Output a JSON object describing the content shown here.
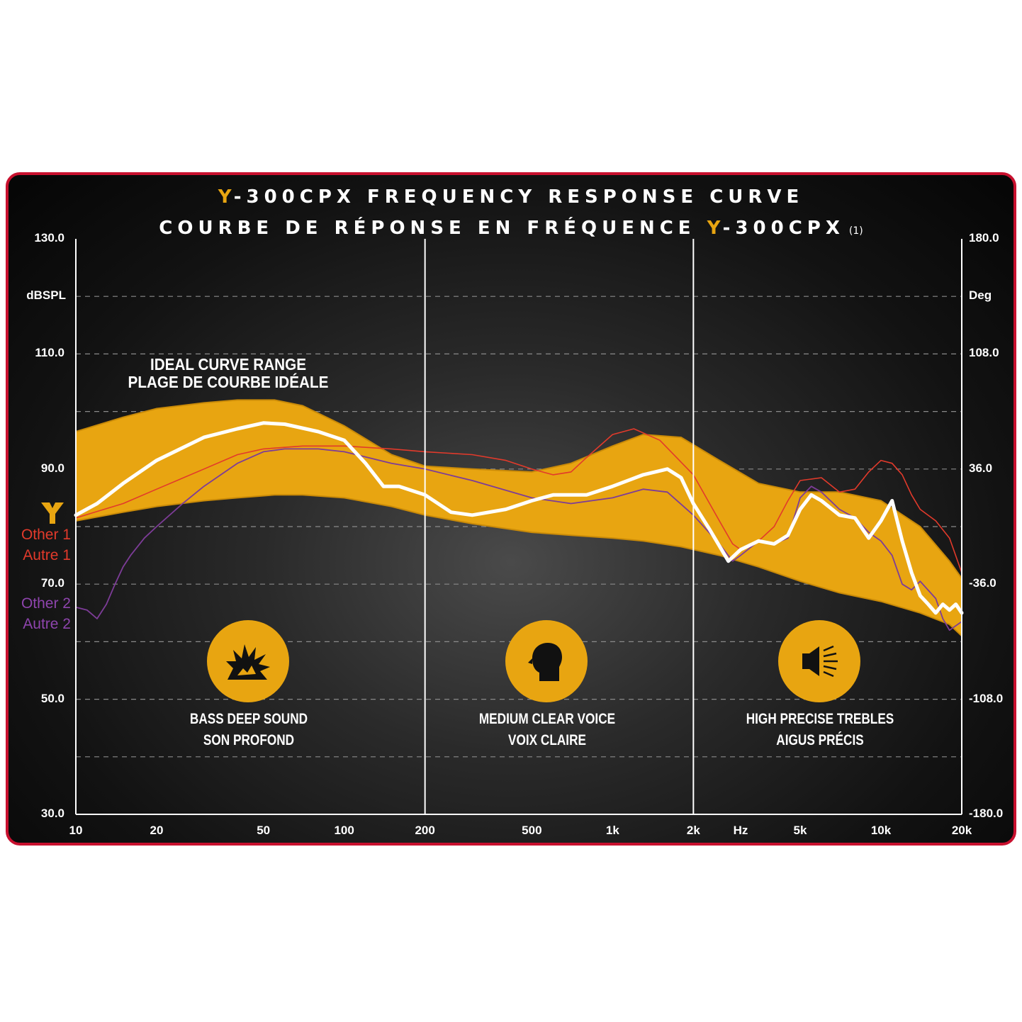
{
  "title": {
    "line1_brand": "Y",
    "line1_text": "-300CPX FREQUENCY RESPONSE CURVE",
    "line2_text": "COURBE DE RÉPONSE EN FRÉQUENCE ",
    "line2_brand": "Y",
    "line2_model": "-300CPX",
    "line2_note": "(1)"
  },
  "left_axis": {
    "unit": "dBSPL",
    "ticks": [
      {
        "value": 130,
        "label": "130.0"
      },
      {
        "value": 110,
        "label": "110.0"
      },
      {
        "value": 90,
        "label": "90.0"
      },
      {
        "value": 70,
        "label": "70.0"
      },
      {
        "value": 50,
        "label": "50.0"
      },
      {
        "value": 30,
        "label": "30.0"
      }
    ]
  },
  "right_axis": {
    "unit": "Deg",
    "ticks": [
      {
        "value": 130,
        "label": "180.0"
      },
      {
        "value": 110,
        "label": "108.0"
      },
      {
        "value": 90,
        "label": "36.0"
      },
      {
        "value": 70,
        "label": "-36.0"
      },
      {
        "value": 50,
        "label": "-108.0"
      },
      {
        "value": 30,
        "label": "-180.0"
      }
    ]
  },
  "x_axis": {
    "unit_label": "Hz",
    "unit_position": 3000,
    "ticks": [
      {
        "value": 10,
        "label": "10"
      },
      {
        "value": 20,
        "label": "20"
      },
      {
        "value": 50,
        "label": "50"
      },
      {
        "value": 100,
        "label": "100"
      },
      {
        "value": 200,
        "label": "200"
      },
      {
        "value": 500,
        "label": "500"
      },
      {
        "value": 1000,
        "label": "1k"
      },
      {
        "value": 2000,
        "label": "2k"
      },
      {
        "value": 5000,
        "label": "5k"
      },
      {
        "value": 10000,
        "label": "10k"
      },
      {
        "value": 20000,
        "label": "20k"
      }
    ]
  },
  "legend": {
    "other1": "Other 1",
    "autre1": "Autre 1",
    "other2": "Other 2",
    "autre2": "Autre 2"
  },
  "ideal_label": {
    "line1": "IDEAL CURVE RANGE",
    "line2": "PLAGE DE COURBE IDÉALE"
  },
  "zones": [
    {
      "icon": "explosion-icon",
      "line1": "BASS DEEP SOUND",
      "line2": "SON PROFOND"
    },
    {
      "icon": "head-icon",
      "line1": "MEDIUM CLEAR VOICE",
      "line2": "VOIX CLAIRE"
    },
    {
      "icon": "speaker-icon",
      "line1": "HIGH PRECISE TREBLES",
      "line2": "AIGUS PRÉCIS"
    }
  ],
  "colors": {
    "ideal_band": "#e8a511",
    "y300cpx": "#ffffff",
    "other1": "#e23a2b",
    "other2": "#7d3c98",
    "border": "#c8102e"
  },
  "chart_data": {
    "type": "line",
    "x_scale": "log",
    "xlim": [
      10,
      20000
    ],
    "ylim": [
      30,
      130
    ],
    "grid": true,
    "band": {
      "name": "IDEAL CURVE RANGE",
      "x": [
        10,
        15,
        20,
        30,
        40,
        55,
        70,
        100,
        150,
        200,
        300,
        500,
        700,
        1000,
        1300,
        1800,
        2500,
        3500,
        5000,
        7000,
        10000,
        14000,
        18000,
        20000
      ],
      "upper": [
        96.5,
        99,
        100.5,
        101.5,
        102,
        102,
        101,
        97.5,
        92.5,
        90.5,
        90,
        89.5,
        91,
        94,
        96,
        95.5,
        91.5,
        87.5,
        86,
        86,
        84.5,
        80,
        74,
        71
      ],
      "lower": [
        81,
        82.5,
        83.5,
        84.5,
        85,
        85.5,
        85.5,
        85,
        83.5,
        82,
        80.5,
        79,
        78.5,
        78,
        77.5,
        76.5,
        75,
        73,
        70.5,
        68.5,
        67,
        65,
        63,
        61
      ]
    },
    "series": [
      {
        "name": "Y-300CPX",
        "x": [
          10,
          12,
          15,
          20,
          30,
          40,
          50,
          60,
          80,
          100,
          120,
          140,
          160,
          200,
          250,
          300,
          400,
          500,
          600,
          700,
          800,
          1000,
          1300,
          1600,
          1800,
          2000,
          2300,
          2700,
          3000,
          3500,
          4000,
          4500,
          5000,
          5500,
          6000,
          7000,
          8000,
          9000,
          10000,
          11000,
          12000,
          13000,
          14000,
          15000,
          16000,
          17000,
          18000,
          19000,
          20000
        ],
        "y": [
          82,
          84,
          87.5,
          91.5,
          95.5,
          97,
          98,
          97.8,
          96.5,
          95,
          91,
          87,
          87,
          85.5,
          82.5,
          82,
          83,
          84.5,
          85.5,
          85.5,
          85.5,
          87,
          89,
          90,
          88.5,
          84,
          79.5,
          74,
          76,
          77.5,
          77,
          78.5,
          83,
          85.5,
          84.5,
          82,
          81.5,
          78,
          81,
          84.5,
          77.5,
          72,
          68,
          66.5,
          65,
          66.5,
          65.5,
          66.5,
          65
        ]
      },
      {
        "name": "Other 1",
        "x": [
          10,
          15,
          20,
          30,
          40,
          50,
          70,
          100,
          150,
          200,
          300,
          400,
          500,
          600,
          700,
          800,
          1000,
          1200,
          1500,
          2000,
          2500,
          2800,
          3000,
          3500,
          4000,
          4500,
          5000,
          6000,
          7000,
          8000,
          9000,
          10000,
          11000,
          12000,
          13000,
          14000,
          16000,
          18000,
          20000
        ],
        "y": [
          81.5,
          84,
          86.5,
          90,
          92.5,
          93.5,
          94,
          94,
          93.5,
          93,
          92.5,
          91.5,
          90,
          89,
          89.5,
          92,
          96,
          97,
          95,
          89,
          81,
          77,
          76,
          77.5,
          80,
          84.5,
          88,
          88.5,
          86,
          86.5,
          89.5,
          91.5,
          91,
          89,
          85.5,
          83,
          81,
          78,
          72
        ]
      },
      {
        "name": "Other 2",
        "x": [
          10,
          11,
          12,
          13,
          14,
          15,
          16,
          18,
          20,
          25,
          30,
          40,
          50,
          60,
          80,
          100,
          150,
          200,
          300,
          500,
          700,
          1000,
          1300,
          1600,
          2000,
          2500,
          2800,
          3000,
          3500,
          4000,
          4500,
          5000,
          5500,
          6000,
          7000,
          8000,
          9000,
          10000,
          11000,
          12000,
          13000,
          14000,
          16000,
          17000,
          18000,
          20000
        ],
        "y": [
          66,
          65.5,
          64,
          66.5,
          70,
          73,
          75,
          78,
          80,
          84,
          87,
          91,
          93,
          93.5,
          93.5,
          93,
          91,
          90,
          88,
          85,
          84,
          85,
          86.5,
          86,
          82,
          77,
          74,
          75,
          77.5,
          77,
          78,
          85,
          87,
          86,
          83,
          81.5,
          79,
          77.5,
          75,
          70,
          69,
          70.5,
          67.5,
          64,
          62,
          63.5
        ]
      }
    ]
  }
}
